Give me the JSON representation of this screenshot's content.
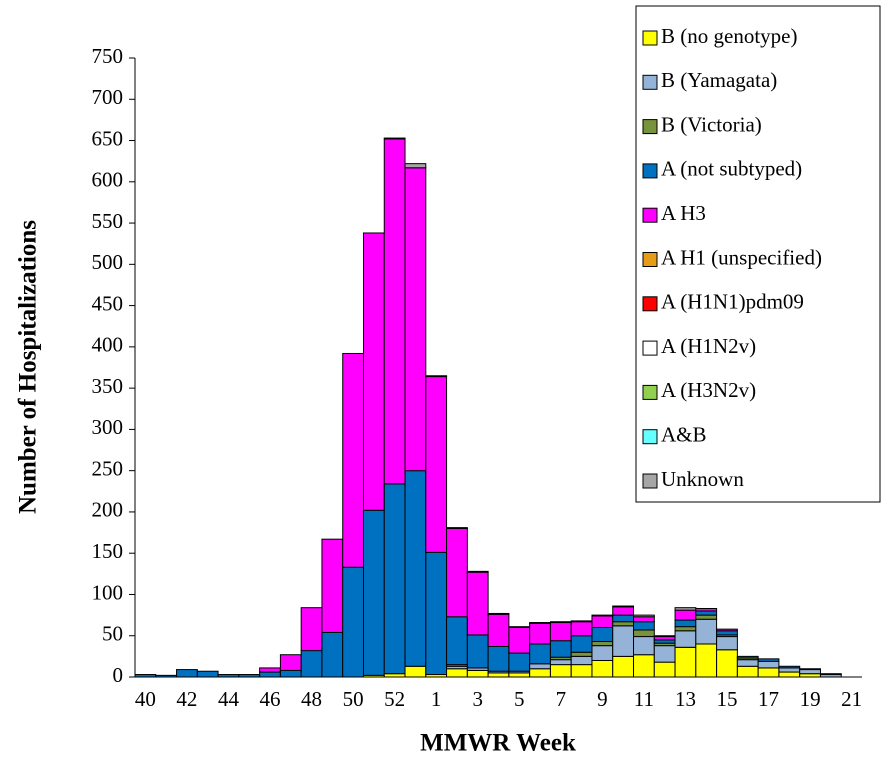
{
  "chart_data": {
    "type": "stacked_bar",
    "xlabel": "MMWR Week",
    "ylabel": "Number of Hospitalizations",
    "categories": [
      "40",
      null,
      "42",
      null,
      "44",
      null,
      "46",
      null,
      "48",
      null,
      "50",
      null,
      "52",
      null,
      "1",
      null,
      "3",
      null,
      "5",
      null,
      "7",
      null,
      "9",
      null,
      "11",
      null,
      "13",
      null,
      "15",
      null,
      "17",
      null,
      "19",
      null,
      "21"
    ],
    "ylim": [
      0,
      750
    ],
    "yticks": [
      0,
      50,
      100,
      150,
      200,
      250,
      300,
      350,
      400,
      450,
      500,
      550,
      600,
      650,
      700,
      750
    ],
    "series": [
      {
        "name": "B (no genotype)",
        "color": "#ffff00",
        "values": [
          0,
          0,
          0,
          0,
          0,
          0,
          0,
          0,
          0,
          0,
          0,
          2,
          4,
          13,
          3,
          10,
          8,
          5,
          5,
          10,
          15,
          15,
          20,
          25,
          27,
          18,
          36,
          40,
          33,
          13,
          11,
          6,
          4,
          0,
          0
        ]
      },
      {
        "name": "B (Yamagata)",
        "color": "#95b3d7",
        "values": [
          0,
          0,
          0,
          0,
          0,
          0,
          0,
          0,
          0,
          0,
          0,
          0,
          0,
          0,
          0,
          3,
          3,
          2,
          2,
          6,
          6,
          10,
          18,
          37,
          22,
          20,
          20,
          30,
          16,
          8,
          8,
          5,
          5,
          3,
          0
        ]
      },
      {
        "name": "B (Victoria)",
        "color": "#77933c",
        "values": [
          0,
          0,
          0,
          0,
          0,
          0,
          0,
          0,
          0,
          0,
          0,
          0,
          0,
          0,
          0,
          2,
          0,
          0,
          0,
          0,
          3,
          5,
          5,
          5,
          8,
          3,
          5,
          5,
          2,
          2,
          0,
          0,
          0,
          0,
          0
        ]
      },
      {
        "name": "A (not subtyped)",
        "color": "#0070c0",
        "values": [
          3,
          2,
          9,
          7,
          3,
          3,
          6,
          8,
          32,
          54,
          133,
          200,
          230,
          237,
          148,
          58,
          40,
          30,
          22,
          24,
          20,
          20,
          17,
          8,
          10,
          4,
          8,
          5,
          5,
          2,
          3,
          2,
          1,
          1,
          0
        ]
      },
      {
        "name": "A H3",
        "color": "#ff00ff",
        "values": [
          0,
          0,
          0,
          0,
          0,
          0,
          5,
          19,
          52,
          113,
          259,
          336,
          418,
          367,
          213,
          107,
          76,
          39,
          31,
          25,
          22,
          17,
          14,
          10,
          6,
          4,
          12,
          3,
          2,
          0,
          0,
          0,
          0,
          0,
          0
        ]
      },
      {
        "name": "A H1 (unspecified)",
        "color": "#e69c17",
        "values": [
          0,
          0,
          0,
          0,
          0,
          0,
          0,
          0,
          0,
          0,
          0,
          0,
          0,
          0,
          0,
          0,
          0,
          0,
          0,
          0,
          0,
          0,
          0,
          0,
          0,
          0,
          0,
          0,
          0,
          0,
          0,
          0,
          0,
          0,
          0
        ]
      },
      {
        "name": "A (H1N1)pdm09",
        "color": "#ff0000",
        "values": [
          0,
          0,
          0,
          0,
          0,
          0,
          0,
          0,
          0,
          0,
          0,
          0,
          0,
          0,
          0,
          0,
          0,
          0,
          0,
          0,
          0,
          0,
          0,
          0,
          0,
          0,
          0,
          0,
          0,
          0,
          0,
          0,
          0,
          0,
          0
        ]
      },
      {
        "name": "A (H1N2v)",
        "color": "#ffffff",
        "values": [
          0,
          0,
          0,
          0,
          0,
          0,
          0,
          0,
          0,
          0,
          0,
          0,
          0,
          0,
          0,
          0,
          0,
          0,
          0,
          0,
          0,
          0,
          0,
          0,
          0,
          0,
          0,
          0,
          0,
          0,
          0,
          0,
          0,
          0,
          0
        ]
      },
      {
        "name": "A (H3N2v)",
        "color": "#92d050",
        "values": [
          0,
          0,
          0,
          0,
          0,
          0,
          0,
          0,
          0,
          0,
          0,
          0,
          0,
          0,
          0,
          0,
          0,
          0,
          0,
          0,
          0,
          0,
          0,
          0,
          0,
          0,
          0,
          0,
          0,
          0,
          0,
          0,
          0,
          0,
          0
        ]
      },
      {
        "name": "A&B",
        "color": "#66ffff",
        "values": [
          0,
          0,
          0,
          0,
          0,
          0,
          0,
          0,
          0,
          0,
          0,
          0,
          0,
          0,
          0,
          0,
          0,
          0,
          0,
          0,
          0,
          0,
          0,
          0,
          0,
          0,
          0,
          0,
          0,
          0,
          0,
          0,
          0,
          0,
          0
        ]
      },
      {
        "name": "Unknown",
        "color": "#a6a6a6",
        "values": [
          0,
          0,
          0,
          0,
          0,
          0,
          0,
          0,
          0,
          0,
          0,
          0,
          1,
          5,
          1,
          1,
          1,
          1,
          1,
          1,
          1,
          1,
          1,
          1,
          2,
          1,
          3,
          0,
          0,
          0,
          0,
          0,
          0,
          0,
          0
        ]
      }
    ]
  }
}
